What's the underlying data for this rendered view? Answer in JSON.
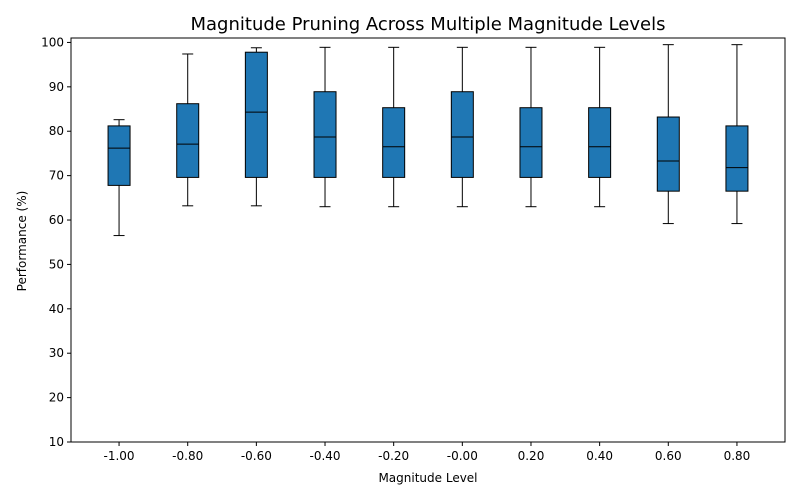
{
  "chart_data": {
    "type": "boxplot",
    "title": "Magnitude Pruning Across Multiple Magnitude Levels",
    "xlabel": "Magnitude Level",
    "ylabel": "Performance (%)",
    "ylim": [
      10,
      101
    ],
    "yticks": [
      10,
      20,
      30,
      40,
      50,
      60,
      70,
      80,
      90,
      100
    ],
    "categories": [
      "-1.00",
      "-0.80",
      "-0.60",
      "-0.40",
      "-0.20",
      "-0.00",
      "0.20",
      "0.40",
      "0.60",
      "0.80"
    ],
    "boxes": [
      {
        "whislo": 56.5,
        "q1": 67.8,
        "med": 76.2,
        "q3": 81.2,
        "whishi": 82.6
      },
      {
        "whislo": 63.2,
        "q1": 69.6,
        "med": 77.1,
        "q3": 86.2,
        "whishi": 97.4
      },
      {
        "whislo": 63.2,
        "q1": 69.6,
        "med": 84.3,
        "q3": 97.8,
        "whishi": 98.8
      },
      {
        "whislo": 63.0,
        "q1": 69.6,
        "med": 78.7,
        "q3": 88.9,
        "whishi": 98.9
      },
      {
        "whislo": 63.0,
        "q1": 69.6,
        "med": 76.5,
        "q3": 85.3,
        "whishi": 98.9
      },
      {
        "whislo": 63.0,
        "q1": 69.6,
        "med": 78.7,
        "q3": 88.9,
        "whishi": 98.9
      },
      {
        "whislo": 63.0,
        "q1": 69.6,
        "med": 76.5,
        "q3": 85.3,
        "whishi": 98.9
      },
      {
        "whislo": 63.0,
        "q1": 69.6,
        "med": 76.5,
        "q3": 85.3,
        "whishi": 98.9
      },
      {
        "whislo": 59.2,
        "q1": 66.5,
        "med": 73.3,
        "q3": 83.2,
        "whishi": 99.5
      },
      {
        "whislo": 59.2,
        "q1": 66.5,
        "med": 71.8,
        "q3": 81.2,
        "whishi": 99.5
      }
    ],
    "box_color": "#1f77b4",
    "edge_color": "#000000",
    "grid": false,
    "legend": "none"
  }
}
